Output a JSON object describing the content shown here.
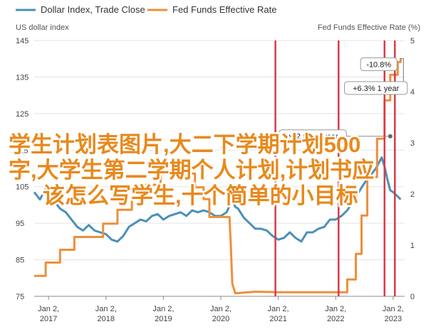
{
  "chart_data": {
    "type": "line",
    "legend": {
      "placement": "top-left",
      "entries": [
        {
          "label": "Dollar Index, Trade Close",
          "color": "#4a90b8"
        },
        {
          "label": "Fed Funds Effective Rate",
          "color": "#ee8f3a"
        }
      ]
    },
    "left_axis_title": "US dollar index",
    "right_axis_title": "Fed Funds Effective Rate (%)",
    "left_ylim": [
      75,
      145
    ],
    "left_ticks": [
      "145",
      "135",
      "125",
      "115",
      "105",
      "95",
      "85",
      "75"
    ],
    "right_ylim": [
      0,
      5
    ],
    "right_ticks": [
      "5",
      "4",
      "3",
      "2",
      "1",
      "0"
    ],
    "x_ticks": [
      {
        "x": 2017.0,
        "line1": "Jan 2,",
        "line2": "2017"
      },
      {
        "x": 2018.0,
        "line1": "Jan 2,",
        "line2": "2018"
      },
      {
        "x": 2019.0,
        "line1": "Jan 2,",
        "line2": "2019"
      },
      {
        "x": 2020.0,
        "line1": "Jan 2,",
        "line2": "2020"
      },
      {
        "x": 2021.0,
        "line1": "Jan 2,",
        "line2": "2021"
      },
      {
        "x": 2022.0,
        "line1": "Jan 2,",
        "line2": "2022"
      },
      {
        "x": 2023.0,
        "line1": "Jan 2,",
        "line2": "2023"
      }
    ],
    "x_range": [
      2016.75,
      2023.2
    ],
    "series": [
      {
        "name": "Dollar Index, Trade Close",
        "axis": "left",
        "color": "#4a90b8",
        "points": [
          [
            2016.75,
            103.5
          ],
          [
            2016.85,
            101.5
          ],
          [
            2016.95,
            104.5
          ],
          [
            2017.0,
            103
          ],
          [
            2017.1,
            101
          ],
          [
            2017.2,
            99
          ],
          [
            2017.3,
            98
          ],
          [
            2017.4,
            96
          ],
          [
            2017.5,
            94
          ],
          [
            2017.6,
            93
          ],
          [
            2017.7,
            94.5
          ],
          [
            2017.8,
            93
          ],
          [
            2017.9,
            92.5
          ],
          [
            2018.0,
            92
          ],
          [
            2018.1,
            90.5
          ],
          [
            2018.2,
            90
          ],
          [
            2018.3,
            91.5
          ],
          [
            2018.4,
            94
          ],
          [
            2018.5,
            95
          ],
          [
            2018.6,
            96
          ],
          [
            2018.7,
            95.5
          ],
          [
            2018.8,
            97
          ],
          [
            2018.9,
            97.5
          ],
          [
            2019.0,
            96
          ],
          [
            2019.1,
            97
          ],
          [
            2019.2,
            97.5
          ],
          [
            2019.3,
            98
          ],
          [
            2019.4,
            97
          ],
          [
            2019.5,
            98.5
          ],
          [
            2019.6,
            98
          ],
          [
            2019.7,
            98.5
          ],
          [
            2019.8,
            98
          ],
          [
            2019.9,
            97
          ],
          [
            2020.0,
            97
          ],
          [
            2020.1,
            98
          ],
          [
            2020.2,
            101.5
          ],
          [
            2020.25,
            99.5
          ],
          [
            2020.3,
            99
          ],
          [
            2020.4,
            96.5
          ],
          [
            2020.5,
            95
          ],
          [
            2020.6,
            93.5
          ],
          [
            2020.7,
            93.5
          ],
          [
            2020.8,
            93
          ],
          [
            2020.9,
            91.5
          ],
          [
            2021.0,
            90.5
          ],
          [
            2021.1,
            91
          ],
          [
            2021.2,
            92.5
          ],
          [
            2021.3,
            91
          ],
          [
            2021.4,
            90
          ],
          [
            2021.5,
            92.5
          ],
          [
            2021.6,
            92.5
          ],
          [
            2021.7,
            93.5
          ],
          [
            2021.8,
            94
          ],
          [
            2021.9,
            96
          ],
          [
            2022.0,
            96
          ],
          [
            2022.1,
            97
          ],
          [
            2022.2,
            98.5
          ],
          [
            2022.3,
            101
          ],
          [
            2022.4,
            103.5
          ],
          [
            2022.5,
            106
          ],
          [
            2022.6,
            108
          ],
          [
            2022.7,
            110
          ],
          [
            2022.8,
            113
          ],
          [
            2022.85,
            110.5
          ],
          [
            2022.9,
            107
          ],
          [
            2022.95,
            104
          ],
          [
            2023.0,
            103.5
          ],
          [
            2023.1,
            102
          ],
          [
            2023.13,
            101.5
          ]
        ]
      },
      {
        "name": "Fed Funds Effective Rate",
        "axis": "right",
        "color": "#ee8f3a",
        "points": [
          [
            2016.75,
            0.4
          ],
          [
            2016.95,
            0.4
          ],
          [
            2016.95,
            0.66
          ],
          [
            2017.2,
            0.66
          ],
          [
            2017.2,
            0.91
          ],
          [
            2017.45,
            0.91
          ],
          [
            2017.45,
            1.16
          ],
          [
            2017.95,
            1.16
          ],
          [
            2017.95,
            1.42
          ],
          [
            2018.2,
            1.42
          ],
          [
            2018.2,
            1.69
          ],
          [
            2018.45,
            1.69
          ],
          [
            2018.45,
            1.91
          ],
          [
            2018.7,
            1.91
          ],
          [
            2018.7,
            2.18
          ],
          [
            2018.95,
            2.18
          ],
          [
            2018.95,
            2.4
          ],
          [
            2019.55,
            2.4
          ],
          [
            2019.55,
            2.13
          ],
          [
            2019.7,
            2.13
          ],
          [
            2019.7,
            1.9
          ],
          [
            2019.8,
            1.9
          ],
          [
            2019.8,
            1.55
          ],
          [
            2020.15,
            1.55
          ],
          [
            2020.17,
            1.1
          ],
          [
            2020.2,
            0.25
          ],
          [
            2020.25,
            0.06
          ],
          [
            2020.6,
            0.09
          ],
          [
            2021.0,
            0.08
          ],
          [
            2021.5,
            0.08
          ],
          [
            2022.0,
            0.08
          ],
          [
            2022.2,
            0.08
          ],
          [
            2022.2,
            0.33
          ],
          [
            2022.35,
            0.33
          ],
          [
            2022.35,
            0.83
          ],
          [
            2022.45,
            0.83
          ],
          [
            2022.45,
            1.58
          ],
          [
            2022.55,
            1.58
          ],
          [
            2022.55,
            2.33
          ],
          [
            2022.72,
            2.33
          ],
          [
            2022.72,
            3.08
          ],
          [
            2022.85,
            3.08
          ],
          [
            2022.85,
            3.83
          ],
          [
            2022.95,
            3.83
          ],
          [
            2022.95,
            4.33
          ],
          [
            2023.08,
            4.33
          ],
          [
            2023.08,
            4.58
          ],
          [
            2023.13,
            4.58
          ],
          [
            2023.13,
            4.65
          ]
        ]
      }
    ],
    "markers": [
      {
        "x": 2020.95,
        "color": "#d63a4a"
      },
      {
        "x": 2022.05,
        "color": "#d63a4a"
      },
      {
        "x": 2022.85,
        "color": "#d63a4a"
      },
      {
        "x": 2023.03,
        "color": "#d63a4a"
      }
    ],
    "annotations": [
      {
        "label": "-10.8%",
        "x": 2022.75,
        "y": 138.5,
        "bracket": true
      },
      {
        "label": "+6.3% 1 year",
        "x": 2022.7,
        "y": 132
      },
      {
        "label": "+12.5% 2 year",
        "x": 2021.6,
        "y": 118.8,
        "line_from": 2020.1,
        "line_to": 2022.95
      }
    ]
  },
  "overlay": {
    "line1": "学生计划表图片,大二下学期计划500",
    "line2": "字,大学生第二学期个人计划,计划书应",
    "line3": "该怎么写学生,十个简单的小目标"
  }
}
